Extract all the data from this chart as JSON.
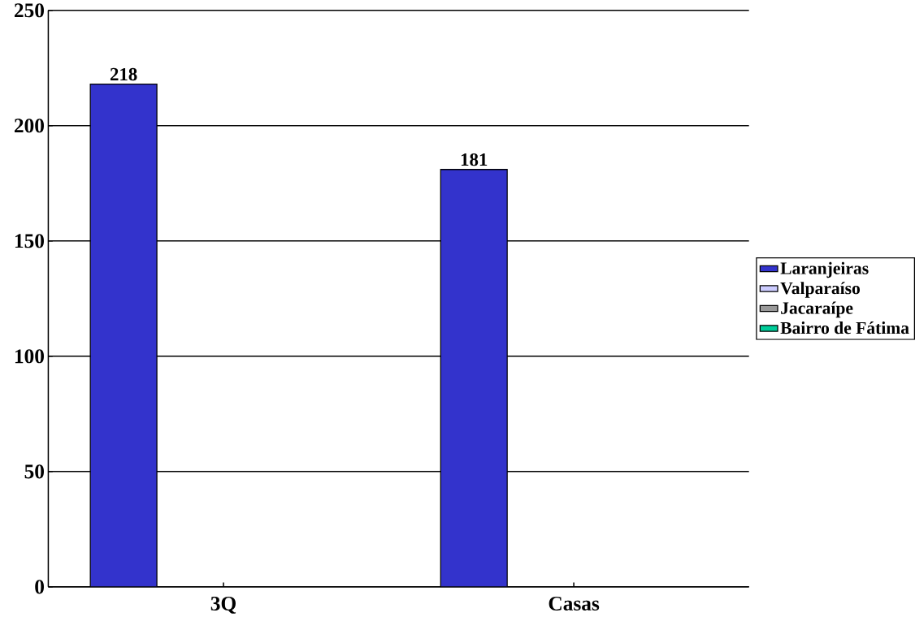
{
  "chart_data": {
    "type": "bar",
    "categories": [
      "3Q",
      "Casas"
    ],
    "series": [
      {
        "name": "Laranjeiras",
        "color": "#3333cc",
        "values": [
          218,
          181
        ]
      },
      {
        "name": "Valparaíso",
        "color": "#ccccff",
        "values": [
          null,
          null
        ]
      },
      {
        "name": "Jacaraípe",
        "color": "#999999",
        "values": [
          null,
          null
        ]
      },
      {
        "name": "Bairro de Fátima",
        "color": "#00cc99",
        "values": [
          null,
          null
        ]
      }
    ],
    "ylim": [
      0,
      250
    ],
    "yticks": [
      0,
      50,
      100,
      150,
      200,
      250
    ],
    "grid": "y",
    "legend": "right",
    "data_labels": true
  }
}
